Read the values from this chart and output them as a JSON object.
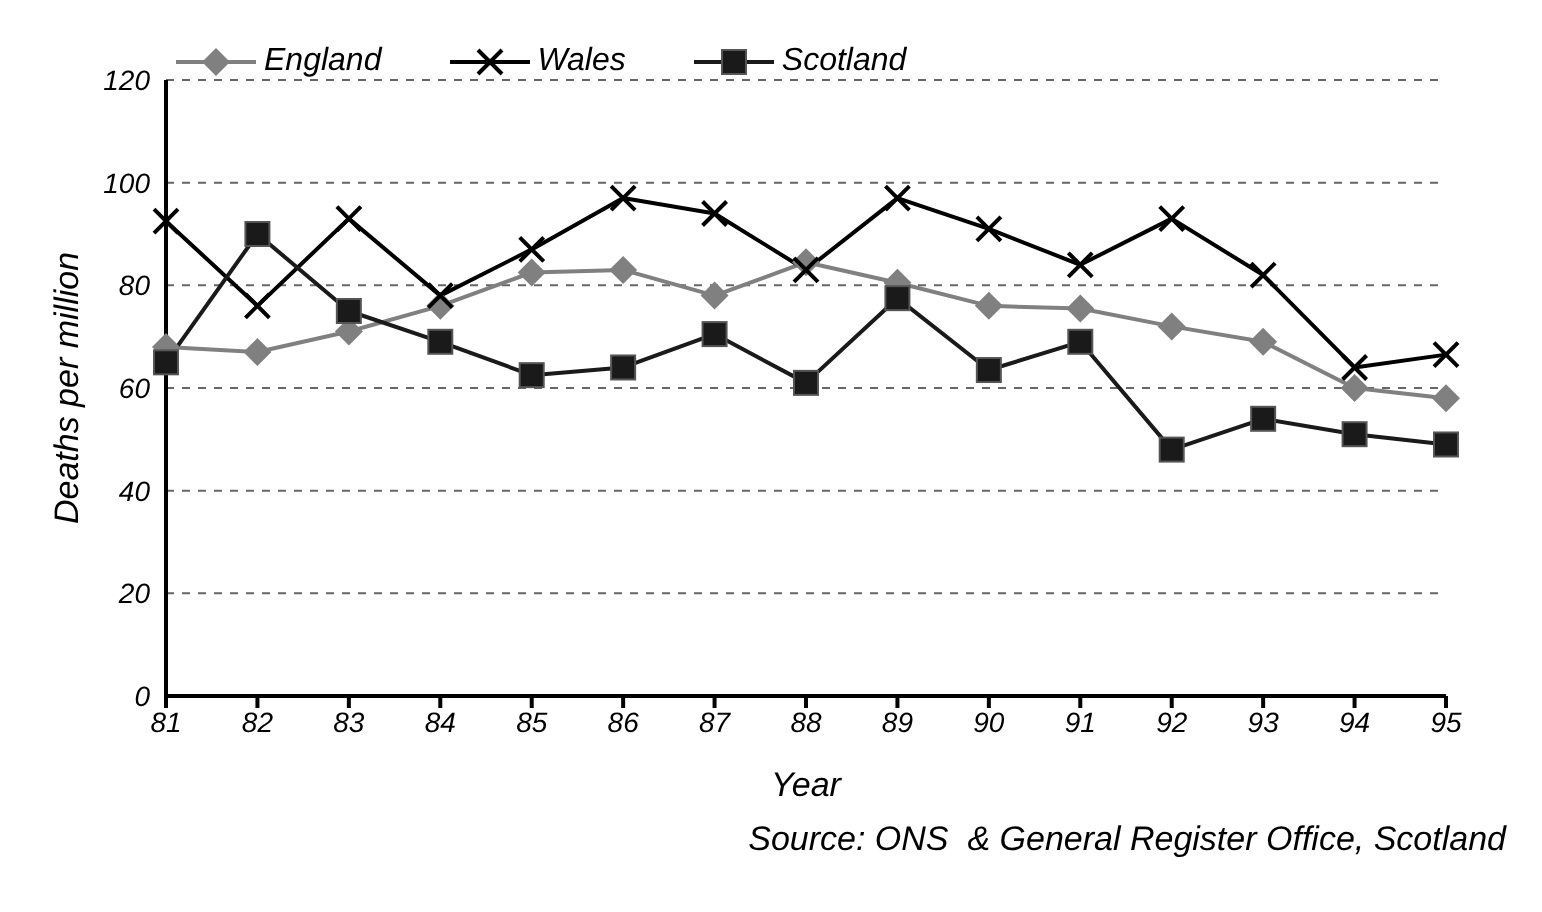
{
  "chart_data": {
    "type": "line",
    "xlabel": "Year",
    "ylabel": "Deaths per million",
    "categories": [
      "81",
      "82",
      "83",
      "84",
      "85",
      "86",
      "87",
      "88",
      "89",
      "90",
      "91",
      "92",
      "93",
      "94",
      "95"
    ],
    "series": [
      {
        "name": "England",
        "color": "#808080",
        "marker": "diamond",
        "values": [
          68,
          67,
          71,
          76,
          82.5,
          83,
          78,
          84.5,
          80.5,
          76,
          75.5,
          72,
          69,
          60,
          58
        ]
      },
      {
        "name": "Wales",
        "color": "#000000",
        "marker": "cross",
        "values": [
          92.5,
          76,
          93,
          78,
          87,
          97,
          94,
          83,
          97,
          91,
          84,
          93,
          82,
          64,
          66.5
        ]
      },
      {
        "name": "Scotland",
        "color": "#1a1a1a",
        "marker": "square",
        "values": [
          65,
          90,
          75,
          69,
          62.5,
          64,
          70.5,
          61,
          77.5,
          63.5,
          69,
          48,
          54,
          51,
          49
        ]
      }
    ],
    "ylim": [
      0,
      120
    ],
    "yticks": [
      0,
      20,
      40,
      60,
      80,
      100,
      120
    ],
    "grid": "y",
    "legend": "top",
    "line_style": "solid",
    "annotations": [
      "Source: ONS  & General Register Office, Scotland"
    ]
  }
}
